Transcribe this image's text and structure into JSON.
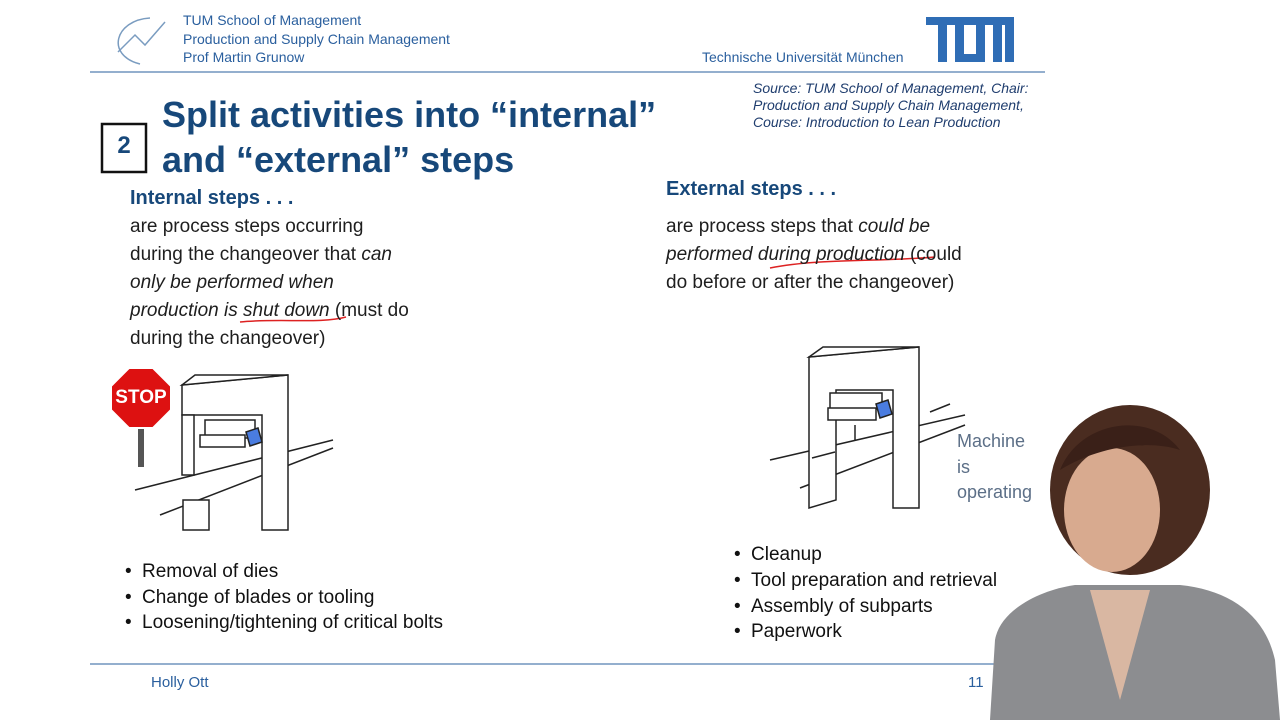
{
  "header": {
    "school": "TUM School of Management",
    "chair": "Production and Supply Chain Management",
    "professor": "Prof Martin Grunow",
    "university": "Technische Universität München"
  },
  "source": [
    "Source: TUM School of Management, Chair:",
    "Production and Supply Chain Management,",
    "Course: Introduction to Lean Production"
  ],
  "step_number": "2",
  "title": [
    "Split activities into “internal”",
    "and “external” steps"
  ],
  "internal": {
    "heading": "Internal steps . . .",
    "lines": [
      [
        {
          "text": "are process steps occurring",
          "italic": false
        }
      ],
      [
        {
          "text": "during the changeover that ",
          "italic": false
        },
        {
          "text": "can",
          "italic": true
        }
      ],
      [
        {
          "text": "only be performed when",
          "italic": true
        }
      ],
      [
        {
          "text": "production is shut down",
          "italic": true
        },
        {
          "text": " (must do",
          "italic": false
        }
      ],
      [
        {
          "text": "during the changeover)",
          "italic": false
        }
      ]
    ],
    "sign": "STOP",
    "bullets": [
      "Removal of dies",
      "Change of blades or tooling",
      "Loosening/tightening of critical bolts"
    ]
  },
  "external": {
    "heading": "External steps . . .",
    "lines": [
      [
        {
          "text": "are process steps that ",
          "italic": false
        },
        {
          "text": "could be",
          "italic": true
        }
      ],
      [
        {
          "text": "performed during production",
          "italic": true
        },
        {
          "text": " (could",
          "italic": false
        }
      ],
      [
        {
          "text": "do before or after the changeover)",
          "italic": false
        }
      ]
    ],
    "annotation": [
      "Machine",
      "is",
      "operating"
    ],
    "bullets": [
      "Cleanup",
      "Tool preparation and retrieval",
      "Assembly of subparts",
      "Paperwork"
    ]
  },
  "footer": {
    "presenter": "Holly Ott",
    "page": "11"
  }
}
